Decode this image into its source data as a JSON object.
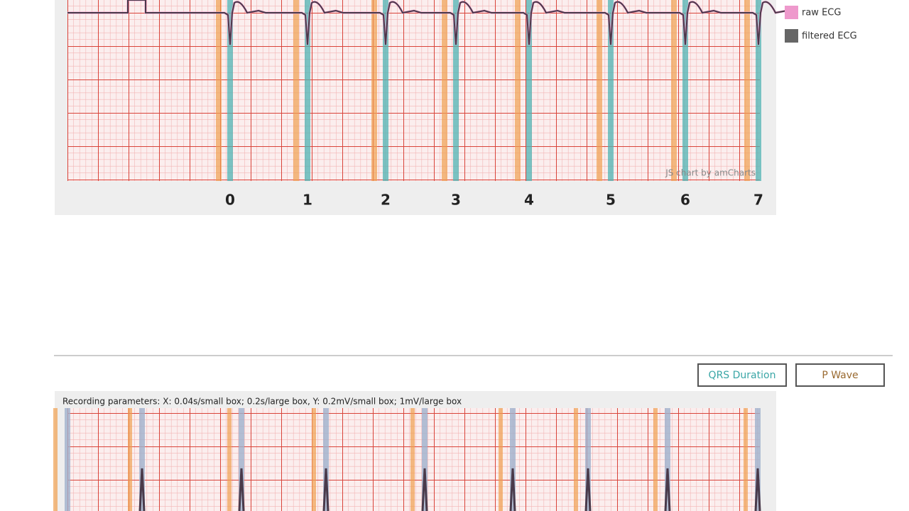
{
  "top_chart": {
    "legend": [
      "raw ECG",
      "filtered ECG"
    ],
    "beat_labels": [
      0,
      1,
      2,
      3,
      4,
      5,
      6,
      7
    ],
    "credit": "JS chart by amCharts"
  },
  "buttons": [
    "QRS Duration",
    "P Wave"
  ],
  "bottom_chart": {
    "parameters": "Recording parameters: X: 0.04s/small box; 0.2s/large box, Y: 0.2mV/small box; 1mV/large box"
  }
}
